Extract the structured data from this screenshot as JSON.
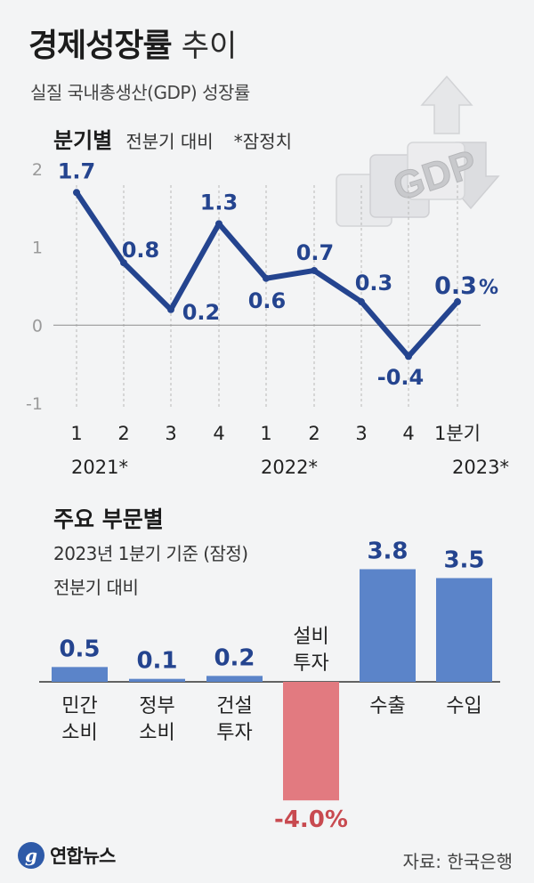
{
  "title": {
    "main": "경제성장률",
    "sub": "추이"
  },
  "subtitle": "실질 국내총생산(GDP) 성장률",
  "quarterly_section": {
    "title": "분기별",
    "basis": "전분기 대비",
    "note": "*잠정치"
  },
  "sector_section": {
    "title": "주요 부문별",
    "sub1": "2023년 1분기 기준 (잠정)",
    "sub2": "전분기 대비"
  },
  "decoration": {
    "gdp_text": "GDP"
  },
  "logo_text": "연합뉴스",
  "source": "자료: 한국은행",
  "colors": {
    "line": "#24448f",
    "label": "#24448f",
    "bar_positive": "#5b84c9",
    "bar_negative": "#e27a80",
    "negative_label": "#c84a50",
    "axis_text": "#9a9a9a",
    "grid": "#b8b8b8"
  },
  "chart_data": [
    {
      "type": "line",
      "title": "분기별",
      "x": [
        "1",
        "2",
        "3",
        "4",
        "1",
        "2",
        "3",
        "4",
        "1분기"
      ],
      "year_labels": [
        {
          "at": 0,
          "label": "2021*"
        },
        {
          "at": 4,
          "label": "2022*"
        },
        {
          "at": 8,
          "label": "2023*"
        }
      ],
      "series": [
        {
          "values": [
            1.7,
            0.8,
            0.2,
            1.3,
            0.6,
            0.7,
            0.3,
            -0.4,
            0.3
          ],
          "labels": [
            "1.7",
            "0.8",
            "0.2",
            "1.3",
            "0.6",
            "0.7",
            "0.3",
            "-0.4",
            "0.3"
          ],
          "last_unit": "%"
        }
      ],
      "yticks": [
        "2",
        "1",
        "0",
        "-1"
      ],
      "ylim": [
        -1,
        2
      ],
      "grid": "vertical dashed"
    },
    {
      "type": "bar",
      "title": "주요 부문별",
      "categories": [
        "민간 소비",
        "정부 소비",
        "건설 투자",
        "설비 투자",
        "수출",
        "수입"
      ],
      "category_lines": [
        [
          "민간",
          "소비"
        ],
        [
          "정부",
          "소비"
        ],
        [
          "건설",
          "투자"
        ],
        [
          "설비",
          "투자"
        ],
        [
          "수출"
        ],
        [
          "수입"
        ]
      ],
      "values": [
        0.5,
        0.1,
        0.2,
        -4.0,
        3.8,
        3.5
      ],
      "labels": [
        "0.5",
        "0.1",
        "0.2",
        "-4.0%",
        "3.8",
        "3.5"
      ]
    }
  ]
}
